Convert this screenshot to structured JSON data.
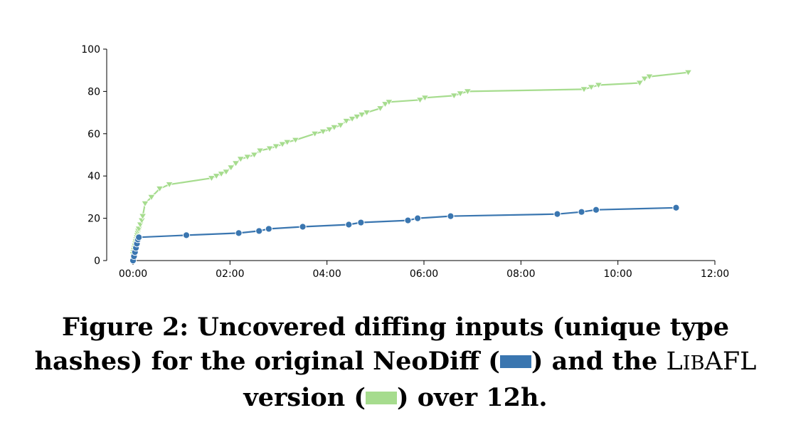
{
  "colors": {
    "neodiff": "#3a76b0",
    "libafl": "#a6dc8e"
  },
  "caption": {
    "part1": "Figure 2: Uncovered diffing inputs (unique type hashes) for the original NeoDiff (",
    "part2": ") and the ",
    "lib_L": "L",
    "lib_ib": "IB",
    "lib_AFL": "AFL",
    "part3": " version (",
    "part4": ") over 12h."
  },
  "chart_data": {
    "type": "line",
    "x_unit": "hours",
    "xlim": [
      0,
      12
    ],
    "ylim": [
      0,
      100
    ],
    "xticks": [
      0,
      2,
      4,
      6,
      8,
      10,
      12
    ],
    "xtick_labels": [
      "00:00",
      "02:00",
      "04:00",
      "06:00",
      "08:00",
      "10:00",
      "12:00"
    ],
    "yticks": [
      0,
      20,
      40,
      60,
      80,
      100
    ],
    "ytick_labels": [
      "0",
      "20",
      "40",
      "60",
      "80",
      "100"
    ],
    "grid": false,
    "series": [
      {
        "key": "neodiff",
        "marker": "circle",
        "x": [
          0.0,
          0.02,
          0.04,
          0.06,
          0.08,
          0.1,
          0.12,
          1.1,
          2.18,
          2.6,
          2.8,
          3.5,
          4.45,
          4.7,
          5.67,
          5.87,
          6.55,
          8.75,
          9.25,
          9.55,
          11.2
        ],
        "y": [
          0,
          2,
          4,
          6,
          8,
          10,
          11,
          12,
          13,
          14,
          15,
          16,
          17,
          18,
          19,
          20,
          21,
          22,
          23,
          24,
          25
        ]
      },
      {
        "key": "libafl",
        "marker": "triangle-down",
        "x": [
          0.0,
          0.01,
          0.02,
          0.03,
          0.04,
          0.05,
          0.06,
          0.07,
          0.08,
          0.09,
          0.1,
          0.11,
          0.12,
          0.15,
          0.18,
          0.2,
          0.25,
          0.38,
          0.55,
          0.75,
          1.62,
          1.72,
          1.82,
          1.92,
          2.02,
          2.12,
          2.22,
          2.36,
          2.5,
          2.62,
          2.82,
          2.95,
          3.08,
          3.18,
          3.35,
          3.75,
          3.92,
          4.05,
          4.15,
          4.28,
          4.4,
          4.52,
          4.62,
          4.72,
          4.82,
          5.1,
          5.2,
          5.28,
          5.92,
          6.02,
          6.62,
          6.75,
          6.9,
          9.3,
          9.45,
          9.6,
          10.45,
          10.55,
          10.65,
          11.45
        ],
        "y": [
          3,
          4,
          5,
          6,
          7,
          8,
          9,
          10,
          11,
          12,
          13,
          14,
          15,
          17,
          19,
          21,
          27,
          30,
          34,
          36,
          39,
          40,
          41,
          42,
          44,
          46,
          48,
          49,
          50,
          52,
          53,
          54,
          55,
          56,
          57,
          60,
          61,
          62,
          63,
          64,
          66,
          67,
          68,
          69,
          70,
          72,
          74,
          75,
          76,
          77,
          78,
          79,
          80,
          81,
          82,
          83,
          84,
          86,
          87,
          89
        ]
      }
    ]
  }
}
